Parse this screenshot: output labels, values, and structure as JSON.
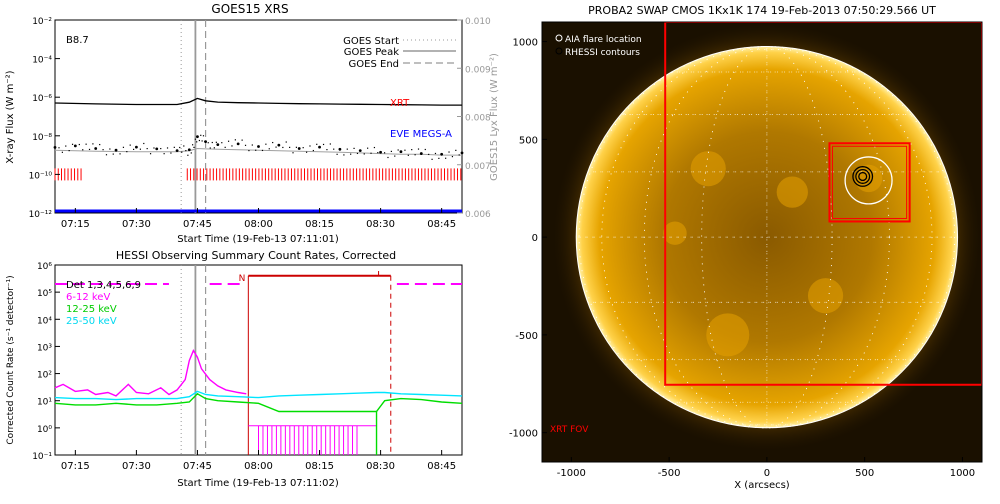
{
  "colors": {
    "goes_long": "#000000",
    "goes_lya": "#000000",
    "goes_short": "#a0a0a0",
    "xrt": "#ff0000",
    "eve": "#0000ff",
    "hessi_6_12": "#ff00ff",
    "hessi_12_25": "#00dd00",
    "hessi_25_50": "#00e5ff",
    "sun": "#f2b000",
    "sun_dark": "#6b4300"
  },
  "chart_data": [
    {
      "id": "goes",
      "type": "line",
      "title": "GOES15 XRS",
      "xlabel": "Start Time (19-Feb-13 07:11:01)",
      "ylabel": "X-ray Flux (W m⁻²)",
      "ylabel_right": "GOES15 Lyx Flux (W m⁻²)",
      "x_unit": "minutes after 07:00 UT",
      "xlim": [
        10,
        110
      ],
      "x_ticks": [
        15,
        30,
        45,
        60,
        75,
        90,
        105
      ],
      "x_tick_labels": [
        "07:15",
        "07:30",
        "07:45",
        "08:00",
        "08:15",
        "08:30",
        "08:45"
      ],
      "y_scale": "log",
      "ylim": [
        1e-12,
        0.01
      ],
      "y_tick_labels": [
        "10⁻¹²",
        "10⁻¹⁰",
        "10⁻⁸",
        "10⁻⁶",
        "10⁻⁴",
        "10⁻²"
      ],
      "y2lim": [
        0.006,
        0.01
      ],
      "y2_tick_labels": [
        "0.006",
        "0.007",
        "0.008",
        "0.009",
        "0.010"
      ],
      "class_label": "B8.7",
      "legend": [
        {
          "label": "GOES Start",
          "style": "dotted"
        },
        {
          "label": "GOES Peak",
          "style": "solid"
        },
        {
          "label": "GOES End",
          "style": "dashed"
        }
      ],
      "annotations": {
        "xrt": "XRT",
        "eve": "EVE MEGS-A"
      },
      "goes_start": 41,
      "goes_peak": 44.5,
      "goes_end": 47,
      "series": [
        {
          "name": "",
          "role": "long",
          "x": [
            10,
            20,
            30,
            40,
            43,
            45,
            47,
            50,
            55,
            60,
            65,
            70,
            75,
            80,
            85,
            90,
            95,
            100,
            105,
            110
          ],
          "y": [
            5e-07,
            4.5e-07,
            4.2e-07,
            4.2e-07,
            5.5e-07,
            8.7e-07,
            6.5e-07,
            5.6e-07,
            5.2e-07,
            5e-07,
            4.8e-07,
            4.6e-07,
            4.5e-07,
            4.4e-07,
            4.3e-07,
            4.2e-07,
            4.1e-07,
            4e-07,
            3.9e-07,
            3.9e-07
          ]
        },
        {
          "name": "",
          "role": "short",
          "x": [
            10,
            20,
            30,
            40,
            43,
            45,
            47,
            50,
            55,
            60,
            65,
            70,
            75,
            80,
            85,
            90,
            95,
            100,
            105,
            110
          ],
          "y": [
            1.8e-09,
            1.6e-09,
            1.5e-09,
            1.5e-09,
            1.7e-09,
            2.2e-09,
            2.1e-09,
            2e-09,
            1.9e-09,
            1.8e-09,
            1.7e-09,
            1.6e-09,
            1.5e-09,
            1.4e-09,
            1.3e-09,
            1.2e-09,
            1.1e-09,
            1.1e-09,
            1e-09,
            1e-09
          ]
        },
        {
          "name": "",
          "role": "lya_dots",
          "x": [
            10,
            15,
            20,
            25,
            30,
            35,
            40,
            43,
            45,
            47,
            50,
            55,
            60,
            65,
            70,
            75,
            80,
            85,
            90,
            95,
            100,
            105,
            110
          ],
          "y": [
            2.5e-09,
            3e-09,
            2.2e-09,
            1.8e-09,
            2.6e-09,
            2.1e-09,
            1.7e-09,
            1.9e-09,
            9e-09,
            5e-09,
            3.5e-09,
            3.8e-09,
            2.8e-09,
            3.3e-09,
            2.2e-09,
            2.6e-09,
            2e-09,
            1.7e-09,
            1.4e-09,
            1.5e-09,
            1.2e-09,
            1.1e-09,
            1.3e-09
          ]
        },
        {
          "name": "",
          "role": "eve",
          "x": [
            10,
            110
          ],
          "y": [
            1e-12,
            1e-12
          ]
        },
        {
          "name": "",
          "role": "xrt_ticks",
          "y": 1e-10,
          "segments": [
            [
              10,
              17
            ],
            [
              42.5,
              110
            ]
          ]
        }
      ]
    },
    {
      "id": "hessi",
      "type": "line",
      "title": "HESSI Observing Summary Count Rates, Corrected",
      "xlabel": "Start Time (19-Feb-13 07:11:02)",
      "ylabel": "Corrected Count Rate (s⁻¹ detector⁻¹)",
      "x_unit": "minutes after 07:00 UT",
      "xlim": [
        10,
        110
      ],
      "x_ticks": [
        15,
        30,
        45,
        60,
        75,
        90,
        105
      ],
      "x_tick_labels": [
        "07:15",
        "07:30",
        "07:45",
        "08:00",
        "08:15",
        "08:30",
        "08:45"
      ],
      "y_scale": "log",
      "ylim": [
        0.1,
        1000000.0
      ],
      "y_tick_labels": [
        "10⁻¹",
        "10⁰",
        "10¹",
        "10²",
        "10³",
        "10⁴",
        "10⁵",
        "10⁶"
      ],
      "legend": [
        {
          "label": "Det 1,3,4,5,6,9",
          "color": "#000000"
        },
        {
          "label": "6-12 keV",
          "color": "#ff00ff"
        },
        {
          "label": "12-25 keV",
          "color": "#00dd00"
        },
        {
          "label": "25-50 keV",
          "color": "#00e5ff"
        }
      ],
      "night_label": "N",
      "night_start": 57.5,
      "night_end": 92.5,
      "goes_start": 41,
      "goes_peak": 44.5,
      "goes_end": 47,
      "saa_segments": [
        [
          10,
          38
        ],
        [
          48,
          56
        ],
        [
          94,
          110
        ]
      ],
      "series": [
        {
          "name": "6-12 keV",
          "color": "#ff00ff",
          "x": [
            10,
            12,
            15,
            18,
            20,
            23,
            25,
            28,
            30,
            33,
            36,
            38,
            40,
            42,
            43,
            44,
            45,
            46,
            48,
            50,
            52,
            55,
            57
          ],
          "y": [
            30,
            40,
            22,
            25,
            17,
            20,
            15,
            40,
            20,
            18,
            30,
            17,
            25,
            60,
            300,
            700,
            400,
            150,
            60,
            35,
            25,
            20,
            18
          ]
        },
        {
          "name": "12-25 keV",
          "color": "#00dd00",
          "x": [
            10,
            15,
            20,
            25,
            30,
            35,
            40,
            43,
            45,
            47,
            50,
            55,
            60,
            65,
            70,
            75,
            80,
            85,
            89,
            91,
            95,
            100,
            105,
            110
          ],
          "y": [
            8,
            7,
            7,
            8,
            7,
            7,
            8,
            9,
            18,
            12,
            10,
            9,
            8,
            4,
            4,
            4,
            4,
            4,
            4,
            10,
            12,
            11,
            9,
            8
          ]
        },
        {
          "name": "25-50 keV",
          "color": "#00e5ff",
          "x": [
            10,
            15,
            20,
            25,
            30,
            35,
            40,
            43,
            45,
            47,
            50,
            55,
            60,
            65,
            70,
            75,
            80,
            85,
            89,
            91,
            95,
            100,
            105,
            110
          ],
          "y": [
            13,
            12,
            12,
            11,
            12,
            12,
            12,
            14,
            22,
            17,
            15,
            14,
            13,
            15,
            16,
            17,
            18,
            19,
            20,
            20,
            18,
            17,
            16,
            15
          ]
        }
      ]
    },
    {
      "id": "swap",
      "type": "image",
      "title": "PROBA2 SWAP CMOS 1Kx1K 174 19-Feb-2013 07:50:29.566 UT",
      "xlabel": "X (arcsecs)",
      "xlim": [
        -1150,
        1100
      ],
      "ylim": [
        -1150,
        1100
      ],
      "x_ticks": [
        -1000,
        -500,
        0,
        500,
        1000
      ],
      "x_tick_labels": [
        "-1000",
        "-500",
        "0",
        "500",
        "1000"
      ],
      "y_ticks": [
        -1000,
        -500,
        0,
        500,
        1000
      ],
      "y_tick_labels": [
        "-1000",
        "-500",
        "0",
        "500",
        "1000"
      ],
      "legend": [
        {
          "label": "AIA flare location",
          "color": "#ffffff"
        },
        {
          "label": "RHESSI contours",
          "color": "#000000"
        }
      ],
      "fov_label": "XRT FOV",
      "solar_radius": 975,
      "xrt_fov": {
        "x0": -520,
        "x1": 1100,
        "y0": -755,
        "y1": 1100
      },
      "zoom_box": {
        "x0": 320,
        "x1": 730,
        "y0": 80,
        "y1": 480
      },
      "aia_flare_location": {
        "x": 520,
        "y": 290,
        "r": 120
      },
      "rhessi_contours": {
        "x": 490,
        "y": 310,
        "radii": [
          20,
          35,
          50
        ]
      }
    }
  ]
}
